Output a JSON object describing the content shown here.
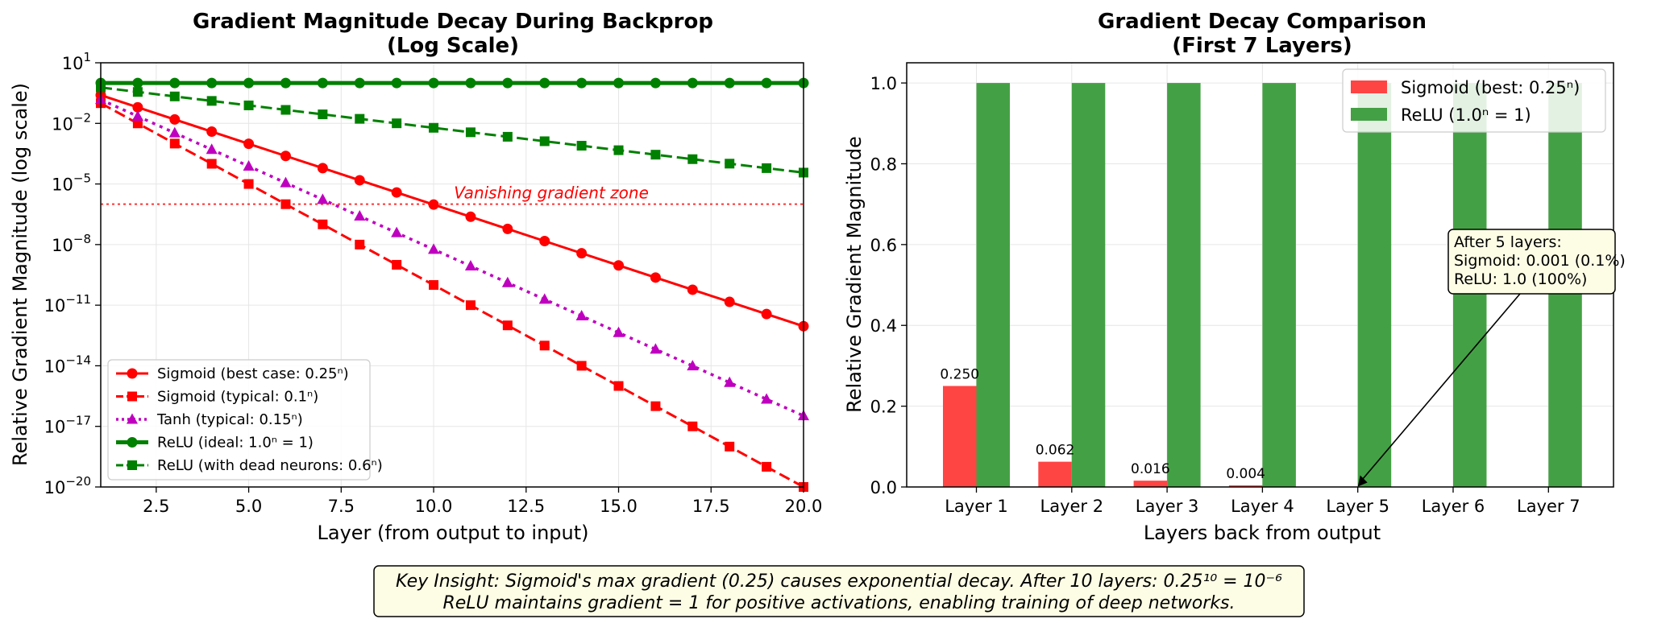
{
  "left_chart": {
    "chart_data": {
      "type": "line",
      "title_line1": "Gradient Magnitude Decay During Backprop",
      "title_line2": "(Log Scale)",
      "xlabel": "Layer (from output to input)",
      "ylabel": "Relative Gradient Magnitude (log scale)",
      "xlim": [
        1,
        20
      ],
      "ylim": [
        1e-20,
        10
      ],
      "yscale": "log",
      "grid": true,
      "legend_position": "lower-left",
      "x_ticks": [
        2.5,
        5.0,
        7.5,
        10.0,
        12.5,
        15.0,
        17.5,
        20.0
      ],
      "x_tick_labels": [
        "2.5",
        "5.0",
        "7.5",
        "10.0",
        "12.5",
        "15.0",
        "17.5",
        "20.0"
      ],
      "y_tick_labels": [
        {
          "base": "10",
          "exp": "1",
          "value": 1
        },
        {
          "base": "10",
          "exp": "−2",
          "value": -2
        },
        {
          "base": "10",
          "exp": "−5",
          "value": -5
        },
        {
          "base": "10",
          "exp": "−8",
          "value": -8
        },
        {
          "base": "10",
          "exp": "−11",
          "value": -11
        },
        {
          "base": "10",
          "exp": "−14",
          "value": -14
        },
        {
          "base": "10",
          "exp": "−17",
          "value": -17
        },
        {
          "base": "10",
          "exp": "−20",
          "value": -20
        }
      ],
      "x": [
        1,
        2,
        3,
        4,
        5,
        6,
        7,
        8,
        9,
        10,
        11,
        12,
        13,
        14,
        15,
        16,
        17,
        18,
        19,
        20
      ],
      "series": [
        {
          "name": "Sigmoid (best case: 0.25ⁿ)",
          "base": 0.25,
          "color": "#ff0000",
          "marker": "circle",
          "dash": "solid",
          "width": 3
        },
        {
          "name": "Sigmoid (typical: 0.1ⁿ)",
          "base": 0.1,
          "color": "#ff0000",
          "marker": "square",
          "dash": "dashed",
          "width": 3
        },
        {
          "name": "Tanh (typical: 0.15ⁿ)",
          "base": 0.15,
          "color": "#bf00bf",
          "marker": "triangle",
          "dash": "dotted",
          "width": 3.5
        },
        {
          "name": "ReLU (ideal: 1.0ⁿ = 1)",
          "base": 1.0,
          "color": "#008000",
          "marker": "circle",
          "dash": "solid",
          "width": 5
        },
        {
          "name": "ReLU (with dead neurons: 0.6ⁿ)",
          "base": 0.6,
          "color": "#008000",
          "marker": "square",
          "dash": "dashed",
          "width": 3
        }
      ],
      "threshold": {
        "value": 1e-06,
        "label": "Vanishing gradient zone",
        "color": "#ff0000"
      }
    }
  },
  "right_chart": {
    "chart_data": {
      "type": "bar",
      "title_line1": "Gradient Decay Comparison",
      "title_line2": "(First 7 Layers)",
      "xlabel": "Layers back from output",
      "ylabel": "Relative Gradient Magnitude",
      "ylim": [
        0,
        1.05
      ],
      "grid": true,
      "legend_position": "top-right",
      "categories": [
        "Layer 1",
        "Layer 2",
        "Layer 3",
        "Layer 4",
        "Layer 5",
        "Layer 6",
        "Layer 7"
      ],
      "y_ticks": [
        0.0,
        0.2,
        0.4,
        0.6,
        0.8,
        1.0
      ],
      "y_tick_labels": [
        "0.0",
        "0.2",
        "0.4",
        "0.6",
        "0.8",
        "1.0"
      ],
      "series": [
        {
          "name": "Sigmoid (best: 0.25ⁿ)",
          "color": "#ff4444",
          "values": [
            0.25,
            0.0625,
            0.015625,
            0.00390625,
            0.0009765625,
            0.000244140625,
            6.103515625e-05
          ]
        },
        {
          "name": "ReLU (1.0ⁿ = 1)",
          "color": "#44a044",
          "values": [
            1,
            1,
            1,
            1,
            1,
            1,
            1
          ]
        }
      ],
      "data_labels": [
        "0.250",
        "0.062",
        "0.016",
        "0.004"
      ],
      "annotation": {
        "lines": [
          "After 5 layers:",
          "Sigmoid: 0.001 (0.1%)",
          "ReLU: 1.0 (100%)"
        ],
        "target_category": "Layer 5",
        "target_value": 0.001
      }
    }
  },
  "insight": {
    "line1": "Key Insight: Sigmoid's max gradient (0.25) causes exponential decay. After 10 layers: 0.25¹⁰ = 10⁻⁶",
    "line2": "ReLU maintains gradient = 1 for positive activations, enabling training of deep networks."
  },
  "colors": {
    "box_fill": "#fdfde6",
    "grid": "#e6e6e6"
  }
}
